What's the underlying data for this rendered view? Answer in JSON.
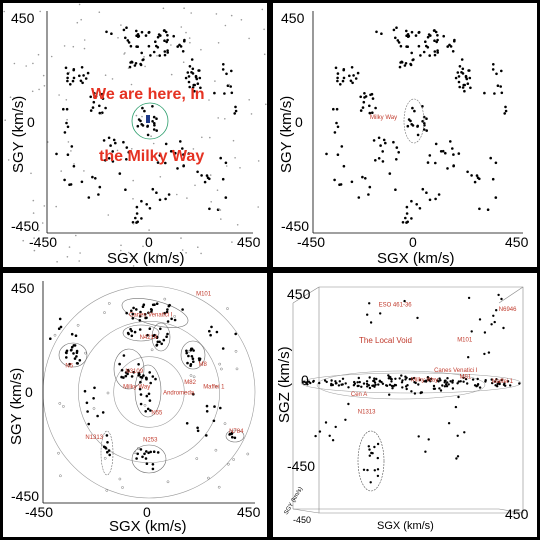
{
  "colors": {
    "point": "#000000",
    "label": "#c0392b",
    "overlay": "#e53222",
    "ring": "#9a9a9a",
    "ellipse": "#707070",
    "milkyway": "#1e3a8a"
  },
  "chart_data": [
    {
      "type": "scatter",
      "panel": "top-left",
      "xlabel": "SGX (km/s)",
      "ylabel": "SGY (km/s)",
      "xlim": [
        -450,
        450
      ],
      "ylim": [
        -450,
        450
      ],
      "xticks": [
        "-450",
        "0",
        "450"
      ],
      "yticks": [
        "450",
        "0",
        "-450"
      ],
      "overlay_text": [
        "We are here, In",
        "the Milky Way"
      ]
    },
    {
      "type": "scatter",
      "panel": "top-right",
      "xlabel": "SGX (km/s)",
      "ylabel": "SGY (km/s)",
      "xlim": [
        -450,
        450
      ],
      "ylim": [
        -450,
        450
      ],
      "xticks": [
        "-450",
        "0",
        "450"
      ],
      "yticks": [
        "450",
        "0",
        "-450"
      ],
      "annotations": [
        {
          "text": "Milky Way",
          "x": -60,
          "y": 10
        }
      ]
    },
    {
      "type": "scatter",
      "panel": "bottom-left",
      "xlabel": "SGX (km/s)",
      "ylabel": "SGY (km/s)",
      "xlim": [
        -450,
        450
      ],
      "ylim": [
        -450,
        450
      ],
      "xticks": [
        "-450",
        "0",
        "450"
      ],
      "yticks": [
        "450",
        "0",
        "-450"
      ],
      "rings": [
        150,
        300,
        450
      ],
      "annotations": [
        {
          "text": "M101",
          "x": 200,
          "y": 410
        },
        {
          "text": "Canes Venatici I",
          "x": -85,
          "y": 320
        },
        {
          "text": "N4214",
          "x": -40,
          "y": 225
        },
        {
          "text": "N5",
          "x": -355,
          "y": 105
        },
        {
          "text": "N3109",
          "x": -100,
          "y": 80
        },
        {
          "text": "M8",
          "x": 210,
          "y": 110
        },
        {
          "text": "Milky Way",
          "x": -110,
          "y": 15
        },
        {
          "text": "Andromeda",
          "x": 60,
          "y": -10
        },
        {
          "text": "M82",
          "x": 150,
          "y": 35
        },
        {
          "text": "Maffei 1",
          "x": 230,
          "y": 15
        },
        {
          "text": "N55",
          "x": 10,
          "y": -95
        },
        {
          "text": "N1313",
          "x": -270,
          "y": -200
        },
        {
          "text": "N253",
          "x": -25,
          "y": -210
        },
        {
          "text": "N784",
          "x": 340,
          "y": -175
        }
      ]
    },
    {
      "type": "scatter",
      "panel": "bottom-right",
      "projection": "3d",
      "xlabel": "SGX (km/s)",
      "ylabel": "SGZ (km/s)",
      "zlabel": "SGY (km/s)",
      "xticks": [
        "-450",
        "450"
      ],
      "yticks": [
        "450",
        "0",
        "-450"
      ],
      "title_annotation": "The Local Void",
      "annotations": [
        {
          "text": "ESO 461-36",
          "x": -140,
          "y": 360
        },
        {
          "text": "N6946",
          "x": 380,
          "y": 340
        },
        {
          "text": "M101",
          "x": 200,
          "y": 200
        },
        {
          "text": "Canes Venatici I",
          "x": 100,
          "y": 60
        },
        {
          "text": "M81",
          "x": 210,
          "y": 30
        },
        {
          "text": "Maffei 1",
          "x": 350,
          "y": 10
        },
        {
          "text": "Milky Way",
          "x": 0,
          "y": 15
        },
        {
          "text": "N1313",
          "x": -230,
          "y": -130
        },
        {
          "text": "Cen A",
          "x": -260,
          "y": -50
        }
      ]
    }
  ]
}
